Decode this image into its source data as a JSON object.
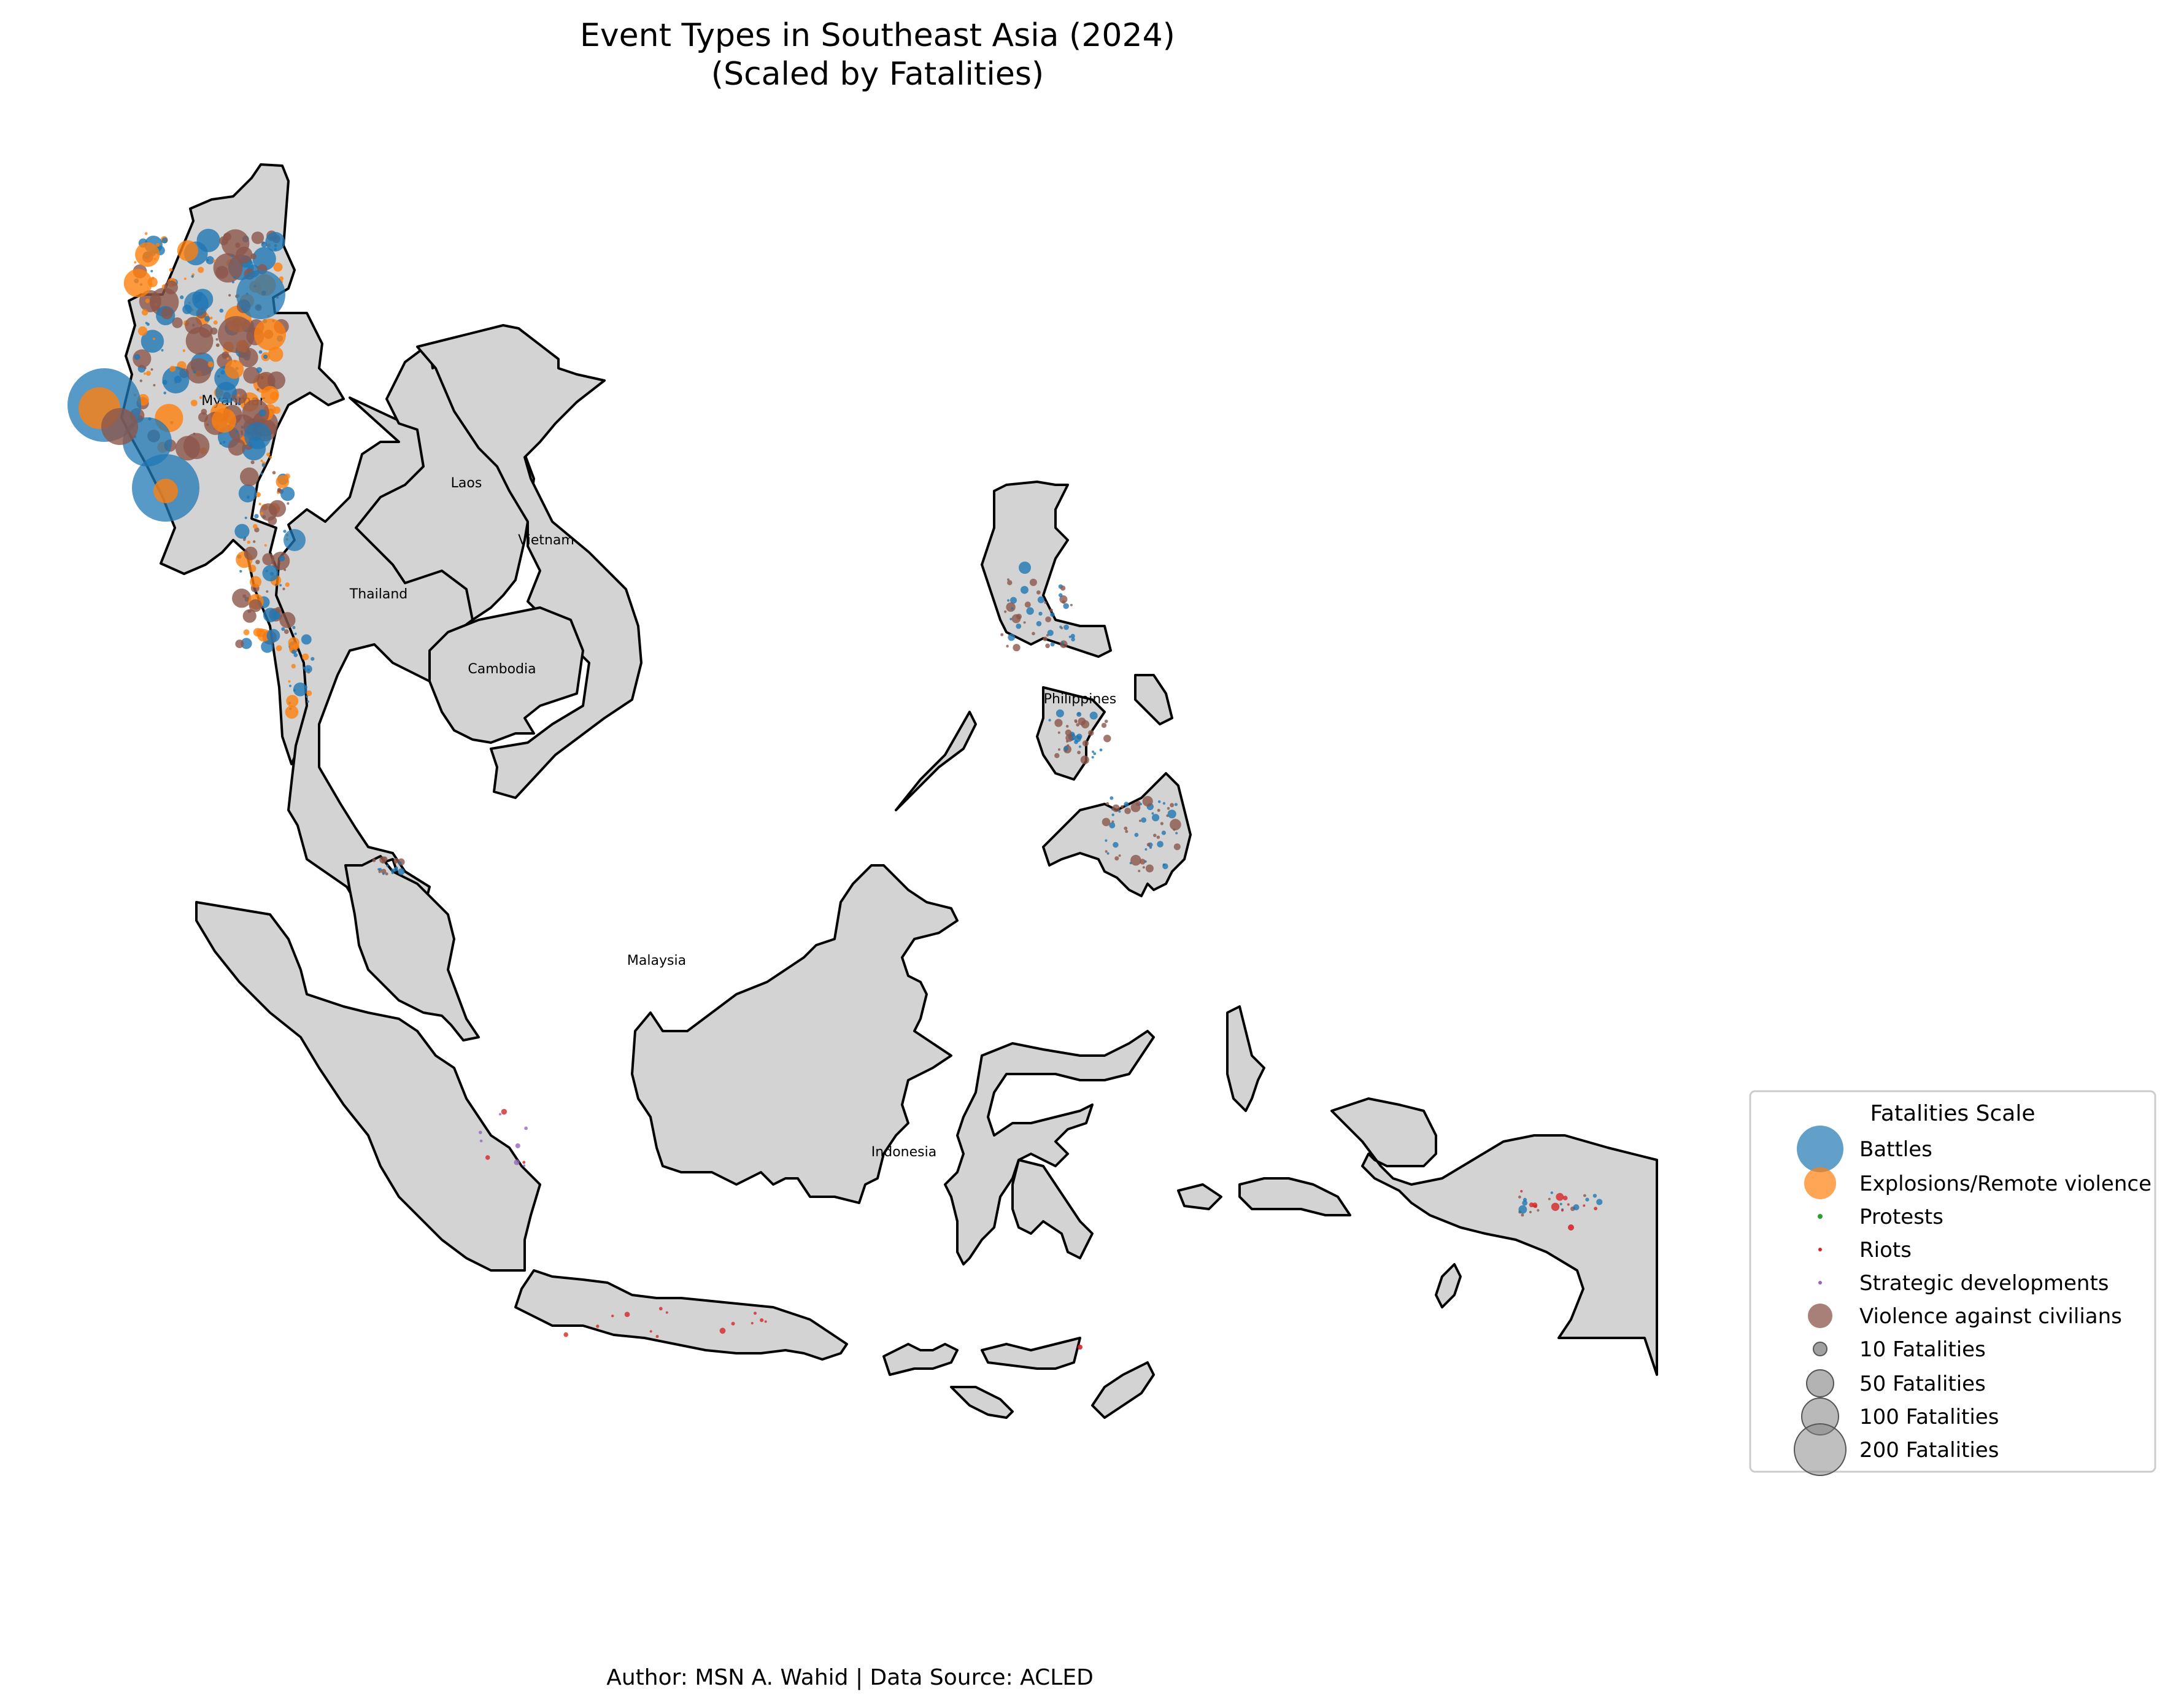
{
  "title_line1": "Event Types in Southeast Asia (2024)",
  "title_line2": "(Scaled by Fatalities)",
  "credit": "Author: MSN A. Wahid | Data Source: ACLED",
  "countries": {
    "myanmar": "Myanmar",
    "laos": "Laos",
    "vietnam": "Vietnam",
    "thailand": "Thailand",
    "cambodia": "Cambodia",
    "philippines": "Philippines",
    "malaysia": "Malaysia",
    "indonesia": "Indonesia"
  },
  "legend": {
    "title": "Fatalities Scale",
    "event_types": [
      {
        "label": "Battles",
        "color": "#1f77b4"
      },
      {
        "label": "Explosions/Remote violence",
        "color": "#ff7f0e"
      },
      {
        "label": "Protests",
        "color": "#2ca02c"
      },
      {
        "label": "Riots",
        "color": "#d62728"
      },
      {
        "label": "Strategic developments",
        "color": "#9467bd"
      },
      {
        "label": "Violence against civilians",
        "color": "#8c564b"
      }
    ],
    "scale": [
      {
        "label": "10 Fatalities",
        "value": 10
      },
      {
        "label": "50 Fatalities",
        "value": 50
      },
      {
        "label": "100 Fatalities",
        "value": 100
      },
      {
        "label": "200 Fatalities",
        "value": 200
      }
    ]
  }
}
